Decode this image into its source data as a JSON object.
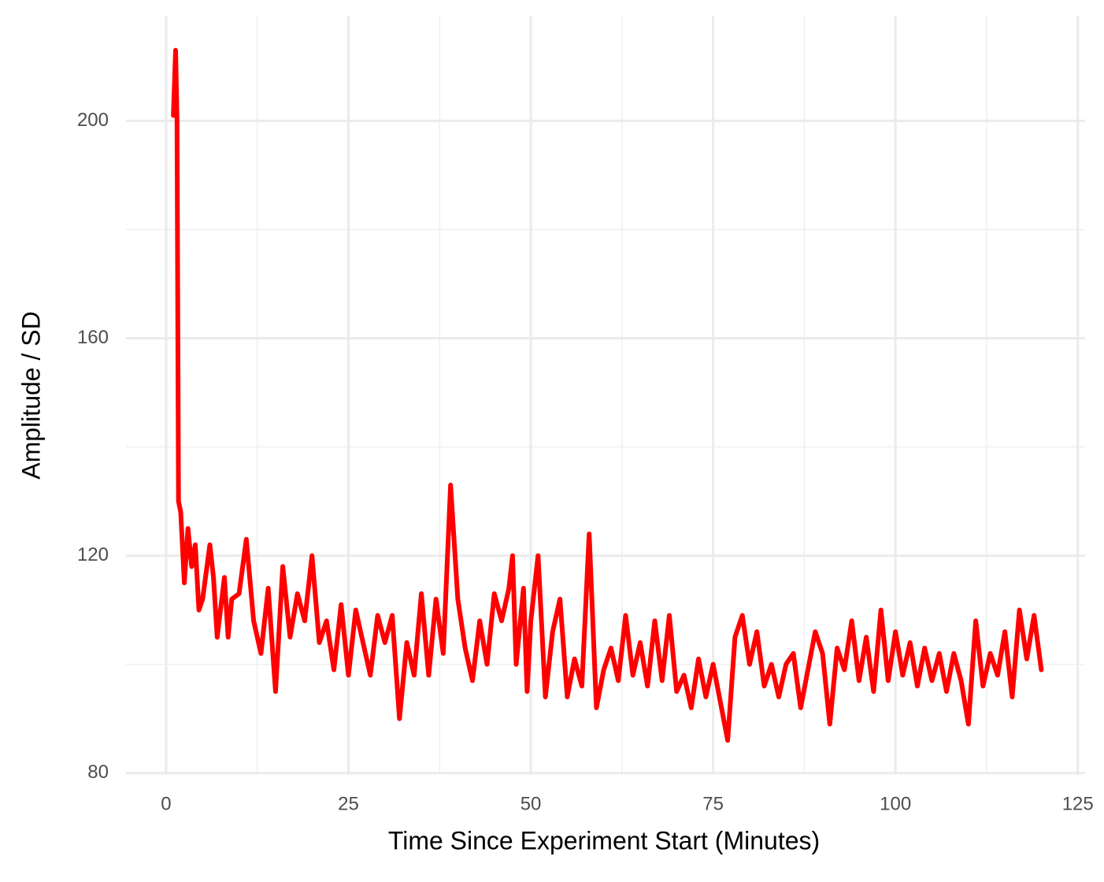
{
  "chart_data": {
    "type": "line",
    "xlabel": "Time Since Experiment Start (Minutes)",
    "ylabel": "Amplitude / SD",
    "color": "#ff0000",
    "x": [
      1,
      1.3,
      1.5,
      1.7,
      2,
      2.5,
      3,
      3.5,
      4,
      4.5,
      5,
      6,
      6.5,
      7,
      8,
      8.5,
      9,
      10,
      11,
      12,
      13,
      14,
      15,
      16,
      17,
      18,
      19,
      20,
      21,
      22,
      23,
      24,
      25,
      26,
      27,
      28,
      29,
      30,
      31,
      32,
      33,
      34,
      35,
      36,
      37,
      38,
      39,
      40,
      41,
      42,
      43,
      44,
      45,
      46,
      47,
      47.5,
      48,
      49,
      49.5,
      50,
      51,
      52,
      53,
      54,
      55,
      56,
      57,
      58,
      59,
      60,
      61,
      62,
      63,
      64,
      65,
      66,
      67,
      68,
      69,
      70,
      71,
      72,
      73,
      74,
      75,
      76,
      77,
      78,
      79,
      80,
      81,
      82,
      83,
      84,
      85,
      86,
      87,
      88,
      89,
      90,
      91,
      92,
      93,
      94,
      95,
      96,
      97,
      98,
      99,
      100,
      101,
      102,
      103,
      104,
      105,
      106,
      107,
      108,
      109,
      110,
      111,
      112,
      113,
      114,
      115,
      116,
      117,
      118,
      119,
      120
    ],
    "values": [
      201,
      213,
      200,
      130,
      128,
      115,
      125,
      118,
      122,
      110,
      112,
      122,
      116,
      105,
      116,
      105,
      112,
      113,
      123,
      108,
      102,
      114,
      95,
      118,
      105,
      113,
      108,
      120,
      104,
      108,
      99,
      111,
      98,
      110,
      104,
      98,
      109,
      104,
      109,
      90,
      104,
      98,
      113,
      98,
      112,
      102,
      133,
      112,
      103,
      97,
      108,
      100,
      113,
      108,
      114,
      120,
      100,
      114,
      95,
      108,
      120,
      94,
      106,
      112,
      94,
      101,
      96,
      124,
      92,
      99,
      103,
      97,
      109,
      98,
      104,
      96,
      108,
      97,
      109,
      95,
      98,
      92,
      101,
      94,
      100,
      93,
      86,
      105,
      109,
      100,
      106,
      96,
      100,
      94,
      100,
      102,
      92,
      99,
      106,
      102,
      89,
      103,
      99,
      108,
      97,
      105,
      95,
      110,
      97,
      106,
      98,
      104,
      96,
      103,
      97,
      102,
      95,
      102,
      97,
      89,
      108,
      96,
      102,
      98,
      106,
      94,
      110,
      101,
      109,
      99
    ],
    "xlim": [
      -5.5,
      126
    ],
    "xticks": [
      0,
      25,
      50,
      75,
      100,
      125
    ],
    "xminor": [
      12.5,
      37.5,
      62.5,
      87.5,
      112.5
    ],
    "ylim": [
      79.65,
      219.35
    ],
    "yticks": [
      80,
      120,
      160,
      200
    ],
    "yminor": [
      100,
      140,
      180
    ],
    "grid": true
  }
}
